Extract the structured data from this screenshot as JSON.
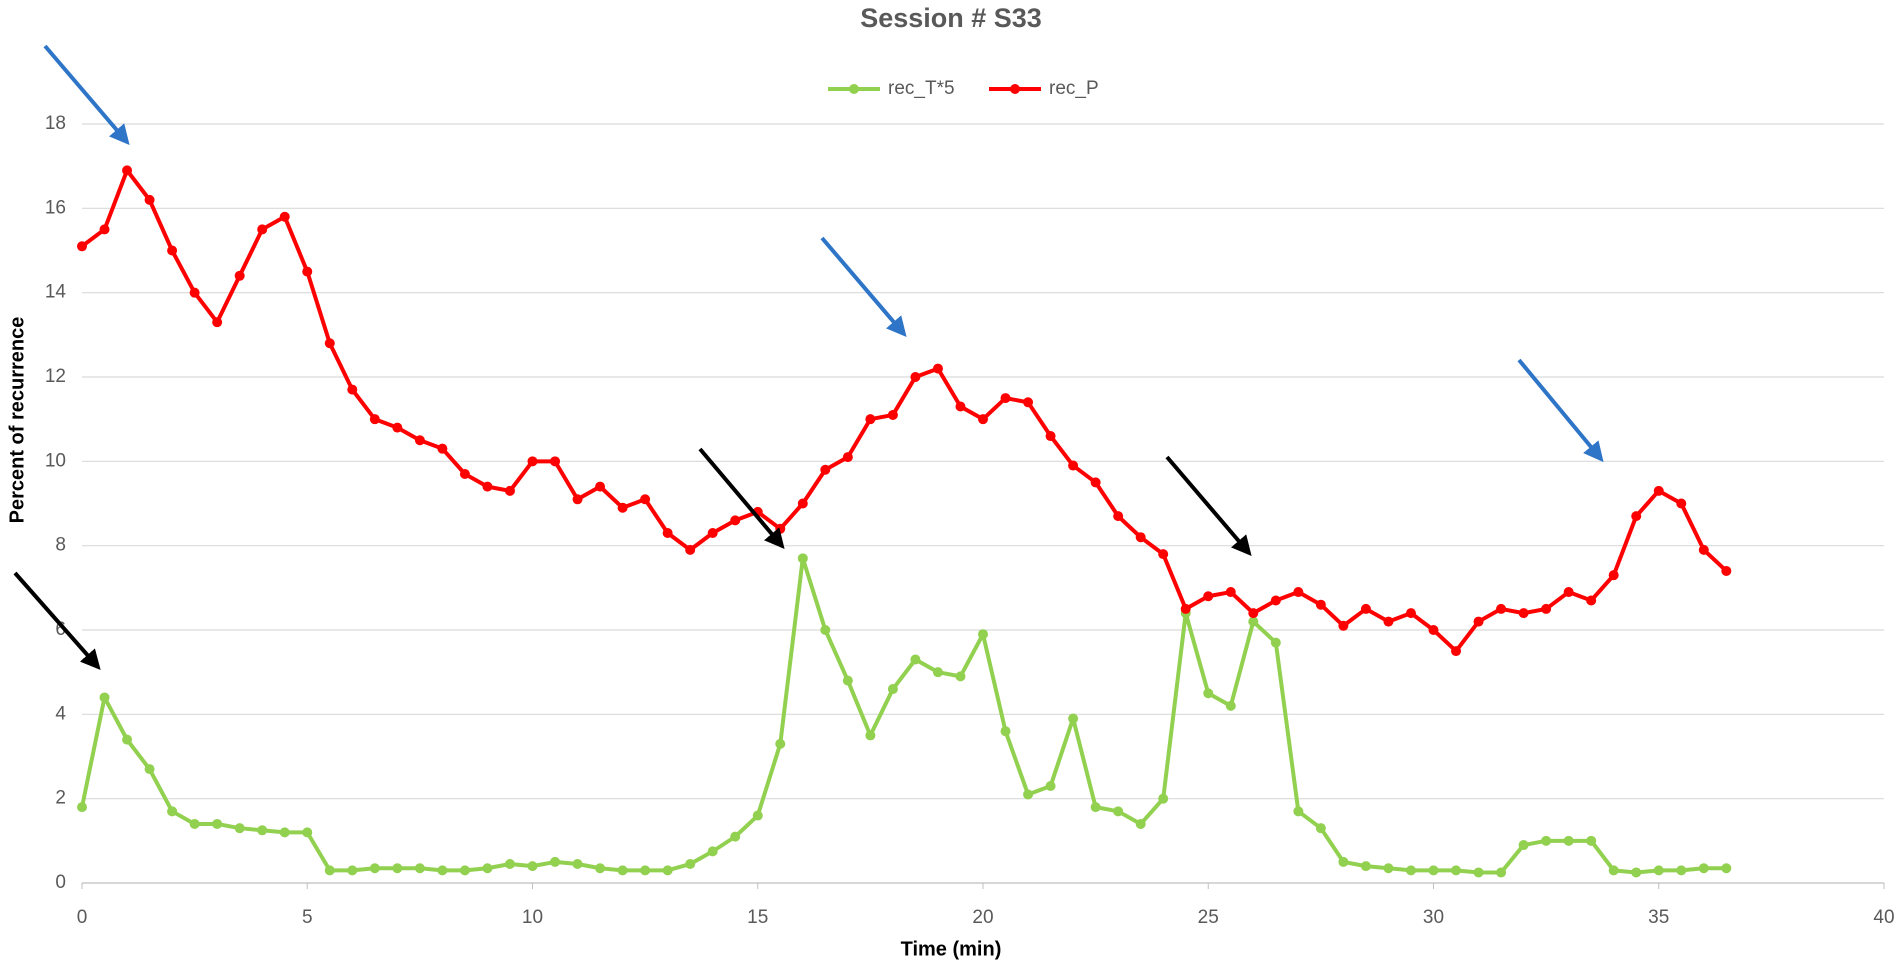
{
  "chart_data": {
    "type": "line",
    "title": "Session # S33",
    "x_label": "Time (min)",
    "y_label": "Percent of recurrence",
    "x": [
      0,
      0.5,
      1,
      1.5,
      2,
      2.5,
      3,
      3.5,
      4,
      4.5,
      5,
      5.5,
      6,
      6.5,
      7,
      7.5,
      8,
      8.5,
      9,
      9.5,
      10,
      10.5,
      11,
      11.5,
      12,
      12.5,
      13,
      13.5,
      14,
      14.5,
      15,
      15.5,
      16,
      16.5,
      17,
      17.5,
      18,
      18.5,
      19,
      19.5,
      20,
      20.5,
      21,
      21.5,
      22,
      22.5,
      23,
      23.5,
      24,
      24.5,
      25,
      25.5,
      26,
      26.5,
      27,
      27.5,
      28,
      28.5,
      29,
      29.5,
      30,
      30.5,
      31,
      31.5,
      32,
      32.5,
      33,
      33.5,
      34,
      34.5,
      35,
      35.5,
      36,
      36.5
    ],
    "series": [
      {
        "name": "rec_T*5",
        "color": "#92d050",
        "values": [
          1.8,
          4.4,
          3.4,
          2.7,
          1.7,
          1.4,
          1.4,
          1.3,
          1.25,
          1.2,
          1.2,
          0.3,
          0.3,
          0.35,
          0.35,
          0.35,
          0.3,
          0.3,
          0.35,
          0.45,
          0.4,
          0.5,
          0.45,
          0.35,
          0.3,
          0.3,
          0.3,
          0.45,
          0.75,
          1.1,
          1.6,
          3.3,
          7.7,
          6.0,
          4.8,
          3.5,
          4.6,
          5.3,
          5.0,
          4.9,
          5.9,
          3.6,
          2.1,
          2.3,
          3.9,
          1.8,
          1.7,
          1.4,
          2.0,
          6.4,
          4.5,
          4.2,
          6.2,
          5.7,
          1.7,
          1.3,
          0.5,
          0.4,
          0.35,
          0.3,
          0.3,
          0.3,
          0.25,
          0.25,
          0.9,
          1.0,
          1.0,
          1.0,
          0.3,
          0.25,
          0.3,
          0.3,
          0.35,
          0.35
        ]
      },
      {
        "name": "rec_P",
        "color": "#ff0000",
        "values": [
          15.1,
          15.5,
          16.9,
          16.2,
          15.0,
          14.0,
          13.3,
          14.4,
          15.5,
          15.8,
          14.5,
          12.8,
          11.7,
          11.0,
          10.8,
          10.5,
          10.3,
          9.7,
          9.4,
          9.3,
          10.0,
          10.0,
          9.1,
          9.4,
          8.9,
          9.1,
          8.3,
          7.9,
          8.3,
          8.6,
          8.8,
          8.4,
          9.0,
          9.8,
          10.1,
          11.0,
          11.1,
          12.0,
          12.2,
          11.3,
          11.0,
          11.5,
          11.4,
          10.6,
          9.9,
          9.5,
          8.7,
          8.2,
          7.8,
          6.5,
          6.8,
          6.9,
          6.4,
          6.7,
          6.9,
          6.6,
          6.1,
          6.5,
          6.2,
          6.4,
          6.0,
          5.5,
          6.2,
          6.5,
          6.4,
          6.5,
          6.9,
          6.7,
          7.3,
          8.7,
          9.3,
          9.0,
          7.9,
          7.4
        ]
      }
    ],
    "xlim": [
      0,
      40
    ],
    "xticks": [
      0,
      5,
      10,
      15,
      20,
      25,
      30,
      35,
      40
    ],
    "ylim": [
      0,
      18
    ],
    "yticks": [
      0,
      2,
      4,
      6,
      8,
      10,
      12,
      14,
      16,
      18
    ],
    "grid": true,
    "legend": "top"
  }
}
